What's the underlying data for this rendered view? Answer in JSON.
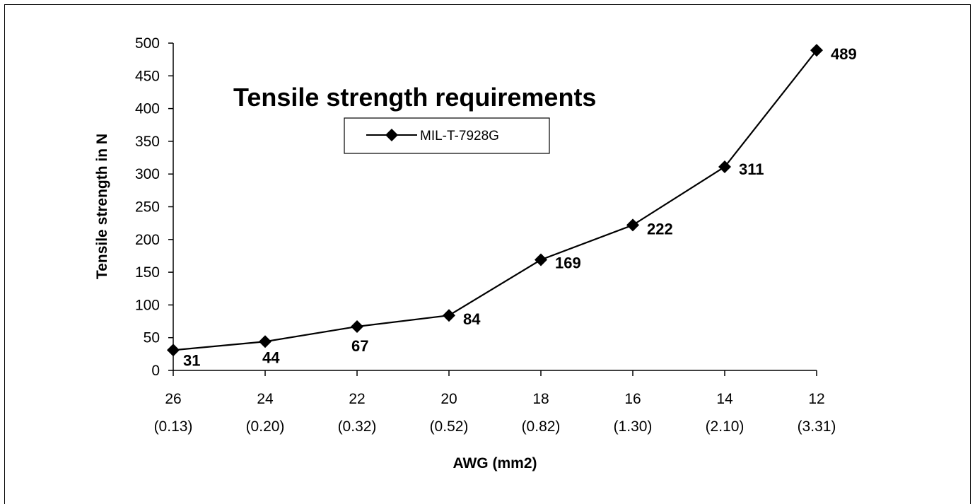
{
  "chart_data": {
    "type": "line",
    "title": "Tensile strength requirements",
    "xlabel": "AWG (mm2)",
    "ylabel": "Tensile strength in N",
    "categories": [
      "26",
      "24",
      "22",
      "20",
      "18",
      "16",
      "14",
      "12"
    ],
    "category_sublabels": [
      "(0.13)",
      "(0.20)",
      "(0.32)",
      "(0.52)",
      "(0.82)",
      "(1.30)",
      "(2.10)",
      "(3.31)"
    ],
    "series": [
      {
        "name": "MIL-T-7928G",
        "values": [
          31,
          44,
          67,
          84,
          169,
          222,
          311,
          489
        ]
      }
    ],
    "data_labels": [
      "31",
      "44",
      "67",
      "84",
      "169",
      "222",
      "311",
      "489"
    ],
    "y_ticks": [
      "0",
      "50",
      "100",
      "150",
      "200",
      "250",
      "300",
      "350",
      "400",
      "450",
      "500"
    ],
    "ylim": [
      0,
      500
    ],
    "grid": false,
    "legend_position": "top-center",
    "line_color": "#000000",
    "marker": "diamond"
  }
}
